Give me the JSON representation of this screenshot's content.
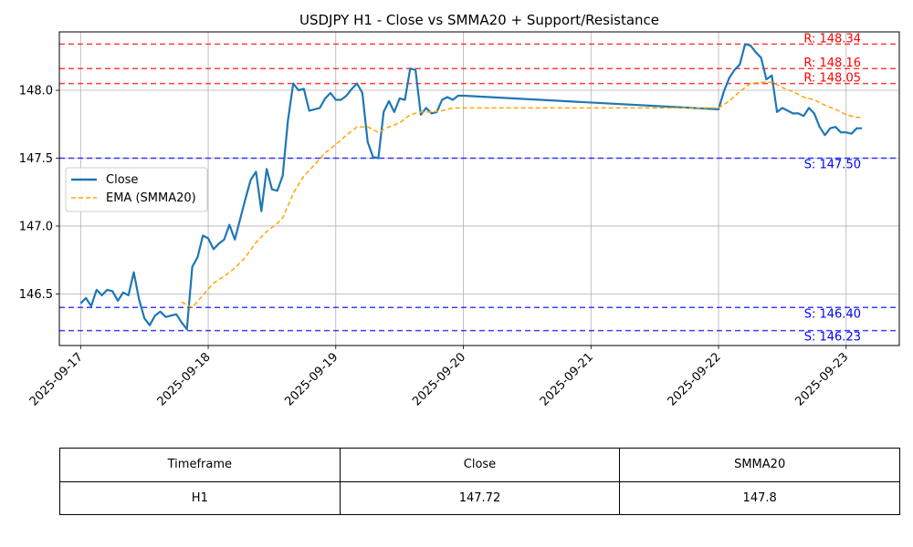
{
  "chart_data": {
    "type": "line",
    "title": "USDJPY H1 - Close vs SMMA20 + Support/Resistance",
    "ylim": [
      146.12,
      148.43
    ],
    "x_range": [
      "2025-09-16T20:00",
      "2025-09-23T10:00"
    ],
    "x_ticks": [
      "2025-09-17",
      "2025-09-18",
      "2025-09-19",
      "2025-09-20",
      "2025-09-21",
      "2025-09-22",
      "2025-09-23"
    ],
    "y_ticks": [
      "146.5",
      "147.0",
      "147.5",
      "148.0"
    ],
    "grid": true,
    "legend": {
      "placement": "center-left",
      "entries": [
        "Close",
        "EMA (SMMA20)"
      ]
    },
    "series": [
      {
        "name": "Close",
        "color": "#1f77b4",
        "points": [
          [
            "2025-09-17T00:00",
            146.43
          ],
          [
            "2025-09-17T01:00",
            146.47
          ],
          [
            "2025-09-17T02:00",
            146.41
          ],
          [
            "2025-09-17T03:00",
            146.53
          ],
          [
            "2025-09-17T04:00",
            146.49
          ],
          [
            "2025-09-17T05:00",
            146.53
          ],
          [
            "2025-09-17T06:00",
            146.52
          ],
          [
            "2025-09-17T07:00",
            146.45
          ],
          [
            "2025-09-17T08:00",
            146.51
          ],
          [
            "2025-09-17T09:00",
            146.49
          ],
          [
            "2025-09-17T10:00",
            146.66
          ],
          [
            "2025-09-17T11:00",
            146.46
          ],
          [
            "2025-09-17T12:00",
            146.32
          ],
          [
            "2025-09-17T13:00",
            146.27
          ],
          [
            "2025-09-17T14:00",
            146.34
          ],
          [
            "2025-09-17T15:00",
            146.37
          ],
          [
            "2025-09-17T16:00",
            146.33
          ],
          [
            "2025-09-17T17:00",
            146.34
          ],
          [
            "2025-09-17T18:00",
            146.35
          ],
          [
            "2025-09-17T19:00",
            146.29
          ],
          [
            "2025-09-17T20:00",
            146.24
          ],
          [
            "2025-09-17T21:00",
            146.7
          ],
          [
            "2025-09-17T22:00",
            146.77
          ],
          [
            "2025-09-17T23:00",
            146.93
          ],
          [
            "2025-09-18T00:00",
            146.91
          ],
          [
            "2025-09-18T01:00",
            146.83
          ],
          [
            "2025-09-18T02:00",
            146.87
          ],
          [
            "2025-09-18T03:00",
            146.9
          ],
          [
            "2025-09-18T04:00",
            147.01
          ],
          [
            "2025-09-18T05:00",
            146.9
          ],
          [
            "2025-09-18T06:00",
            147.05
          ],
          [
            "2025-09-18T07:00",
            147.2
          ],
          [
            "2025-09-18T08:00",
            147.34
          ],
          [
            "2025-09-18T09:00",
            147.4
          ],
          [
            "2025-09-18T10:00",
            147.11
          ],
          [
            "2025-09-18T11:00",
            147.42
          ],
          [
            "2025-09-18T12:00",
            147.27
          ],
          [
            "2025-09-18T13:00",
            147.26
          ],
          [
            "2025-09-18T14:00",
            147.37
          ],
          [
            "2025-09-18T15:00",
            147.78
          ],
          [
            "2025-09-18T16:00",
            148.05
          ],
          [
            "2025-09-18T17:00",
            148.0
          ],
          [
            "2025-09-18T18:00",
            148.01
          ],
          [
            "2025-09-18T19:00",
            147.85
          ],
          [
            "2025-09-18T20:00",
            147.86
          ],
          [
            "2025-09-18T21:00",
            147.87
          ],
          [
            "2025-09-18T22:00",
            147.94
          ],
          [
            "2025-09-18T23:00",
            147.98
          ],
          [
            "2025-09-19T00:00",
            147.93
          ],
          [
            "2025-09-19T01:00",
            147.93
          ],
          [
            "2025-09-19T02:00",
            147.96
          ],
          [
            "2025-09-19T03:00",
            148.01
          ],
          [
            "2025-09-19T04:00",
            148.05
          ],
          [
            "2025-09-19T05:00",
            147.98
          ],
          [
            "2025-09-19T06:00",
            147.62
          ],
          [
            "2025-09-19T07:00",
            147.51
          ],
          [
            "2025-09-19T08:00",
            147.5
          ],
          [
            "2025-09-19T09:00",
            147.84
          ],
          [
            "2025-09-19T10:00",
            147.92
          ],
          [
            "2025-09-19T11:00",
            147.84
          ],
          [
            "2025-09-19T12:00",
            147.94
          ],
          [
            "2025-09-19T13:00",
            147.93
          ],
          [
            "2025-09-19T14:00",
            148.16
          ],
          [
            "2025-09-19T15:00",
            148.15
          ],
          [
            "2025-09-19T16:00",
            147.82
          ],
          [
            "2025-09-19T17:00",
            147.87
          ],
          [
            "2025-09-19T18:00",
            147.83
          ],
          [
            "2025-09-19T19:00",
            147.84
          ],
          [
            "2025-09-19T20:00",
            147.93
          ],
          [
            "2025-09-19T21:00",
            147.95
          ],
          [
            "2025-09-19T22:00",
            147.93
          ],
          [
            "2025-09-19T23:00",
            147.96
          ],
          [
            "2025-09-20T00:00",
            147.96
          ],
          [
            "2025-09-22T00:00",
            147.86
          ],
          [
            "2025-09-22T01:00",
            147.99
          ],
          [
            "2025-09-22T02:00",
            148.09
          ],
          [
            "2025-09-22T03:00",
            148.15
          ],
          [
            "2025-09-22T04:00",
            148.19
          ],
          [
            "2025-09-22T05:00",
            148.34
          ],
          [
            "2025-09-22T06:00",
            148.33
          ],
          [
            "2025-09-22T07:00",
            148.28
          ],
          [
            "2025-09-22T08:00",
            148.24
          ],
          [
            "2025-09-22T09:00",
            148.08
          ],
          [
            "2025-09-22T10:00",
            148.11
          ],
          [
            "2025-09-22T11:00",
            147.84
          ],
          [
            "2025-09-22T12:00",
            147.87
          ],
          [
            "2025-09-22T13:00",
            147.85
          ],
          [
            "2025-09-22T14:00",
            147.83
          ],
          [
            "2025-09-22T15:00",
            147.83
          ],
          [
            "2025-09-22T16:00",
            147.81
          ],
          [
            "2025-09-22T17:00",
            147.87
          ],
          [
            "2025-09-22T18:00",
            147.83
          ],
          [
            "2025-09-22T19:00",
            147.73
          ],
          [
            "2025-09-22T20:00",
            147.67
          ],
          [
            "2025-09-22T21:00",
            147.72
          ],
          [
            "2025-09-22T22:00",
            147.73
          ],
          [
            "2025-09-22T23:00",
            147.69
          ],
          [
            "2025-09-23T00:00",
            147.69
          ],
          [
            "2025-09-23T01:00",
            147.68
          ],
          [
            "2025-09-23T02:00",
            147.72
          ],
          [
            "2025-09-23T03:00",
            147.72
          ]
        ]
      },
      {
        "name": "EMA (SMMA20)",
        "color": "#ffa500",
        "dashed": true,
        "points": [
          [
            "2025-09-17T19:00",
            146.44
          ],
          [
            "2025-09-17T21:00",
            146.4
          ],
          [
            "2025-09-17T23:00",
            146.49
          ],
          [
            "2025-09-18T01:00",
            146.58
          ],
          [
            "2025-09-18T03:00",
            146.63
          ],
          [
            "2025-09-18T05:00",
            146.69
          ],
          [
            "2025-09-18T07:00",
            146.77
          ],
          [
            "2025-09-18T09:00",
            146.88
          ],
          [
            "2025-09-18T11:00",
            146.96
          ],
          [
            "2025-09-18T13:00",
            147.02
          ],
          [
            "2025-09-18T14:00",
            147.06
          ],
          [
            "2025-09-18T16:00",
            147.24
          ],
          [
            "2025-09-18T18:00",
            147.37
          ],
          [
            "2025-09-18T20:00",
            147.45
          ],
          [
            "2025-09-18T22:00",
            147.54
          ],
          [
            "2025-09-19T00:00",
            147.6
          ],
          [
            "2025-09-19T02:00",
            147.67
          ],
          [
            "2025-09-19T04:00",
            147.73
          ],
          [
            "2025-09-19T06:00",
            147.73
          ],
          [
            "2025-09-19T08:00",
            147.69
          ],
          [
            "2025-09-19T10:00",
            147.73
          ],
          [
            "2025-09-19T12:00",
            147.76
          ],
          [
            "2025-09-19T14:00",
            147.82
          ],
          [
            "2025-09-19T16:00",
            147.84
          ],
          [
            "2025-09-19T18:00",
            147.84
          ],
          [
            "2025-09-19T20:00",
            147.85
          ],
          [
            "2025-09-19T22:00",
            147.87
          ],
          [
            "2025-09-20T00:00",
            147.87
          ],
          [
            "2025-09-22T00:00",
            147.87
          ],
          [
            "2025-09-22T02:00",
            147.92
          ],
          [
            "2025-09-22T04:00",
            147.99
          ],
          [
            "2025-09-22T06:00",
            148.05
          ],
          [
            "2025-09-22T08:00",
            148.06
          ],
          [
            "2025-09-22T10:00",
            148.06
          ],
          [
            "2025-09-22T12:00",
            148.02
          ],
          [
            "2025-09-22T14:00",
            147.99
          ],
          [
            "2025-09-22T16:00",
            147.95
          ],
          [
            "2025-09-22T18:00",
            147.93
          ],
          [
            "2025-09-22T20:00",
            147.89
          ],
          [
            "2025-09-22T22:00",
            147.86
          ],
          [
            "2025-09-23T00:00",
            147.82
          ],
          [
            "2025-09-23T02:00",
            147.8
          ],
          [
            "2025-09-23T03:00",
            147.8
          ]
        ]
      }
    ],
    "levels": [
      {
        "kind": "resistance",
        "value": 148.34,
        "label": "R: 148.34",
        "color": "#ff0000"
      },
      {
        "kind": "resistance",
        "value": 148.16,
        "label": "R: 148.16",
        "color": "#ff0000"
      },
      {
        "kind": "resistance",
        "value": 148.05,
        "label": "R: 148.05",
        "color": "#ff0000"
      },
      {
        "kind": "support",
        "value": 147.5,
        "label": "S: 147.50",
        "color": "#0000ff"
      },
      {
        "kind": "support",
        "value": 146.4,
        "label": "S: 146.40",
        "color": "#0000ff"
      },
      {
        "kind": "support",
        "value": 146.23,
        "label": "S: 146.23",
        "color": "#0000ff"
      }
    ]
  },
  "table": {
    "headers": [
      "Timeframe",
      "Close",
      "SMMA20"
    ],
    "row": [
      "H1",
      "147.72",
      "147.8"
    ]
  }
}
